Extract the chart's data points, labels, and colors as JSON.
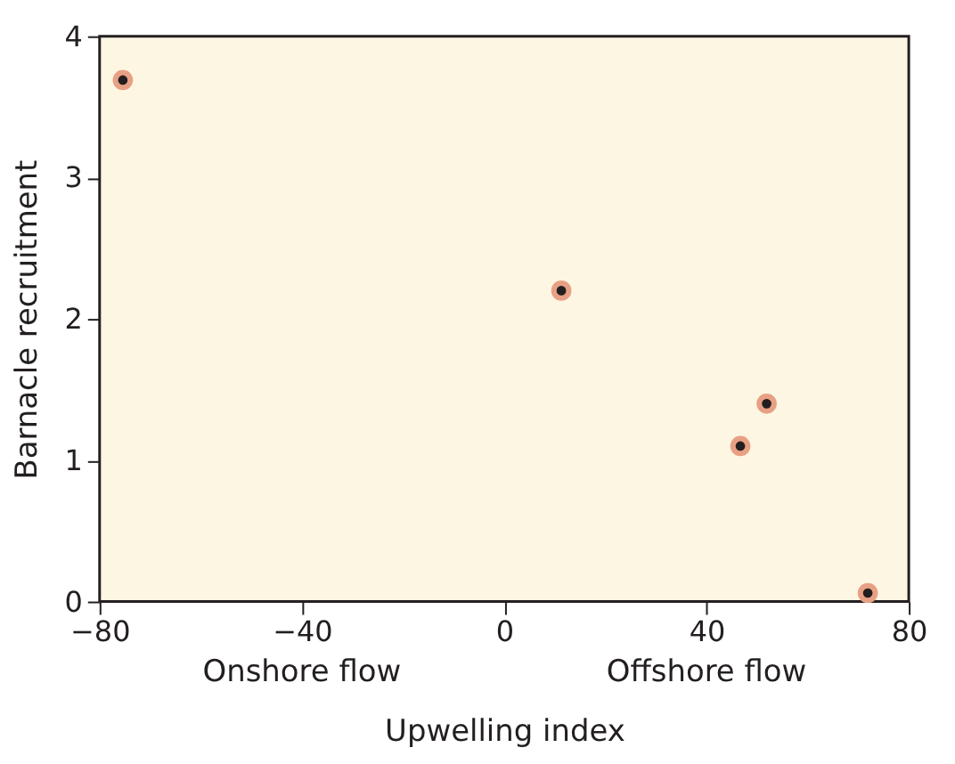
{
  "chart_data": {
    "type": "scatter",
    "xlabel": "Upwelling index",
    "ylabel": "Barnacle recruitment",
    "x": [
      -75.4,
      11.3,
      46.7,
      51.9,
      71.9
    ],
    "series": [
      {
        "color": "#231f20",
        "values": [
          3.69,
          2.2,
          1.1,
          1.4,
          0.06
        ]
      }
    ],
    "marker": "circle",
    "xlim": [
      -80,
      80
    ],
    "xticks": [
      {
        "value": -80,
        "label": "−80"
      },
      {
        "value": -40,
        "label": "−40"
      },
      0,
      40,
      80
    ],
    "ylim": [
      0,
      4
    ],
    "yticks": [
      0,
      1,
      2,
      3,
      4
    ],
    "annotations": [
      "Onshore flow",
      "Offshore flow"
    ],
    "grid": false
  }
}
